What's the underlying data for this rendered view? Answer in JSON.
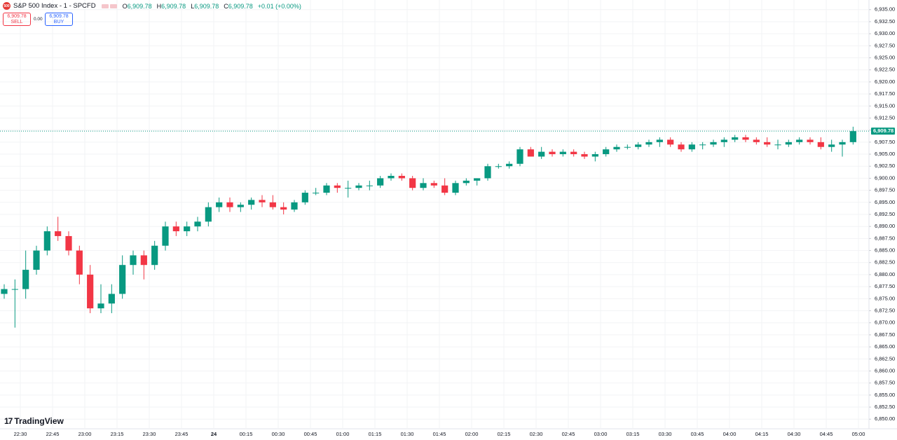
{
  "header": {
    "icon": "500",
    "symbol": "S&P 500 Index - 1 - SPCFD",
    "ohlc": [
      {
        "key": "O",
        "value": "6,909.78"
      },
      {
        "key": "H",
        "value": "6,909.78"
      },
      {
        "key": "L",
        "value": "6,909.78"
      },
      {
        "key": "C",
        "value": "6,909.78"
      }
    ],
    "change": "+0.01 (+0.00%)",
    "sell": {
      "price": "6,909.78",
      "label": "SELL"
    },
    "spread": "0.00",
    "buy": {
      "price": "6,909.78",
      "label": "BUY"
    }
  },
  "logo": "TradingView",
  "chart_data": {
    "type": "candlestick",
    "up_color": "#089981",
    "down_color": "#f23645",
    "grid": true,
    "x": [
      "22:20",
      "22:25",
      "22:30",
      "22:35",
      "22:40",
      "22:45",
      "22:50",
      "22:55",
      "23:00",
      "23:05",
      "23:10",
      "23:15",
      "23:20",
      "23:25",
      "23:30",
      "23:35",
      "23:40",
      "23:45",
      "23:50",
      "23:55",
      "00:00",
      "00:05",
      "00:10",
      "00:15",
      "00:20",
      "00:25",
      "00:30",
      "00:35",
      "00:40",
      "00:45",
      "00:50",
      "00:55",
      "01:00",
      "01:05",
      "01:10",
      "01:15",
      "01:20",
      "01:25",
      "01:30",
      "01:35",
      "01:40",
      "01:45",
      "01:50",
      "01:55",
      "02:00",
      "02:05",
      "02:10",
      "02:15",
      "02:20",
      "02:25",
      "02:30",
      "02:35",
      "02:40",
      "02:45",
      "02:50",
      "02:55",
      "03:00",
      "03:05",
      "03:10",
      "03:15",
      "03:20",
      "03:25",
      "03:30",
      "03:35",
      "03:40",
      "03:45",
      "03:50",
      "03:55",
      "04:00",
      "04:05",
      "04:10",
      "04:15",
      "04:20",
      "04:25",
      "04:30",
      "04:35",
      "04:40",
      "04:45",
      "04:50",
      "04:55"
    ],
    "ohlc": [
      [
        6876,
        6878,
        6875,
        6877
      ],
      [
        6877,
        6879,
        6869,
        6877
      ],
      [
        6877,
        6885,
        6875,
        6881
      ],
      [
        6881,
        6886,
        6880,
        6885
      ],
      [
        6885,
        6890,
        6884,
        6889
      ],
      [
        6889,
        6892,
        6887,
        6888
      ],
      [
        6888,
        6889,
        6884,
        6885
      ],
      [
        6885,
        6886,
        6878,
        6880
      ],
      [
        6880,
        6882,
        6872,
        6873
      ],
      [
        6873,
        6878,
        6872,
        6874
      ],
      [
        6874,
        6878,
        6872,
        6876
      ],
      [
        6876,
        6884,
        6875,
        6882
      ],
      [
        6882,
        6885,
        6880,
        6884
      ],
      [
        6884,
        6885,
        6879,
        6882
      ],
      [
        6882,
        6887,
        6881,
        6886
      ],
      [
        6886,
        6891,
        6885,
        6890
      ],
      [
        6890,
        6891,
        6888,
        6889
      ],
      [
        6889,
        6891,
        6888,
        6890
      ],
      [
        6890,
        6892,
        6889,
        6891
      ],
      [
        6891,
        6895,
        6890,
        6894
      ],
      [
        6894,
        6896,
        6893,
        6895
      ],
      [
        6895,
        6896,
        6893,
        6894
      ],
      [
        6894,
        6895,
        6893,
        6894.5
      ],
      [
        6894.5,
        6896,
        6893.5,
        6895.5
      ],
      [
        6895.5,
        6896.5,
        6894,
        6895
      ],
      [
        6895,
        6896.5,
        6893.5,
        6894
      ],
      [
        6894,
        6895,
        6892.5,
        6893.5
      ],
      [
        6893.5,
        6895.5,
        6893,
        6895
      ],
      [
        6895,
        6897.5,
        6894.5,
        6897
      ],
      [
        6897,
        6898,
        6896.5,
        6897
      ],
      [
        6897,
        6899,
        6896.5,
        6898.5
      ],
      [
        6898.5,
        6899,
        6897,
        6898
      ],
      [
        6898,
        6899.5,
        6896,
        6898
      ],
      [
        6898,
        6899,
        6897.5,
        6898.5
      ],
      [
        6898.5,
        6899.5,
        6897.5,
        6898.5
      ],
      [
        6898.5,
        6900.5,
        6898,
        6900
      ],
      [
        6900,
        6901,
        6899.5,
        6900.5
      ],
      [
        6900.5,
        6901,
        6899.5,
        6900
      ],
      [
        6900,
        6900.5,
        6897.5,
        6898
      ],
      [
        6898,
        6900,
        6897.5,
        6899
      ],
      [
        6899,
        6899.5,
        6898,
        6898.5
      ],
      [
        6898.5,
        6900,
        6896.5,
        6897
      ],
      [
        6897,
        6899.5,
        6896.5,
        6899
      ],
      [
        6899,
        6900,
        6898.5,
        6899.5
      ],
      [
        6899.5,
        6900,
        6898.5,
        6900
      ],
      [
        6900,
        6903,
        6899.5,
        6902.5
      ],
      [
        6902.5,
        6903,
        6902,
        6902.5
      ],
      [
        6902.5,
        6903.5,
        6902,
        6903
      ],
      [
        6903,
        6906.5,
        6902.5,
        6906
      ],
      [
        6906,
        6906.5,
        6904.5,
        6904.5
      ],
      [
        6904.5,
        6906.5,
        6904,
        6905.5
      ],
      [
        6905.5,
        6906,
        6904.5,
        6905
      ],
      [
        6905,
        6906,
        6904.5,
        6905.5
      ],
      [
        6905.5,
        6906,
        6904.5,
        6905
      ],
      [
        6905,
        6905.5,
        6904,
        6904.5
      ],
      [
        6904.5,
        6905.5,
        6903.5,
        6905
      ],
      [
        6905,
        6906.5,
        6904.5,
        6906
      ],
      [
        6906,
        6907,
        6905.5,
        6906.5
      ],
      [
        6906.5,
        6907,
        6906,
        6906.5
      ],
      [
        6906.5,
        6907.5,
        6906,
        6907
      ],
      [
        6907,
        6908,
        6906.5,
        6907.5
      ],
      [
        6907.5,
        6908.5,
        6906.5,
        6908
      ],
      [
        6908,
        6908.5,
        6906.5,
        6907
      ],
      [
        6907,
        6907.5,
        6905.5,
        6906
      ],
      [
        6906,
        6907.5,
        6905.5,
        6907
      ],
      [
        6907,
        6907.5,
        6906,
        6907
      ],
      [
        6907,
        6908,
        6906.5,
        6907.5
      ],
      [
        6907.5,
        6908.5,
        6906.5,
        6908
      ],
      [
        6908,
        6909,
        6907.5,
        6908.5
      ],
      [
        6908.5,
        6909,
        6907.5,
        6908
      ],
      [
        6908,
        6908.5,
        6907,
        6907.5
      ],
      [
        6907.5,
        6908.5,
        6906.5,
        6907
      ],
      [
        6907,
        6908,
        6906,
        6907
      ],
      [
        6907,
        6908,
        6906.5,
        6907.5
      ],
      [
        6907.5,
        6908.5,
        6907,
        6908
      ],
      [
        6908,
        6908.5,
        6907,
        6907.5
      ],
      [
        6907.5,
        6908.5,
        6906,
        6906.5
      ],
      [
        6906.5,
        6908,
        6905.5,
        6907
      ],
      [
        6907,
        6908,
        6904.5,
        6907.5
      ],
      [
        6907.5,
        6910.7,
        6907,
        6909.78
      ]
    ],
    "last_price": {
      "value": 6909.78,
      "label": "6,909.78"
    },
    "ylim": [
      6848,
      6937
    ],
    "yticks": [
      {
        "value": 6850,
        "label": "6,850.00"
      },
      {
        "value": 6852.5,
        "label": "6,852.50"
      },
      {
        "value": 6855,
        "label": "6,855.00"
      },
      {
        "value": 6857.5,
        "label": "6,857.50"
      },
      {
        "value": 6860,
        "label": "6,860.00"
      },
      {
        "value": 6862.5,
        "label": "6,862.50"
      },
      {
        "value": 6865,
        "label": "6,865.00"
      },
      {
        "value": 6867.5,
        "label": "6,867.50"
      },
      {
        "value": 6870,
        "label": "6,870.00"
      },
      {
        "value": 6872.5,
        "label": "6,872.50"
      },
      {
        "value": 6875,
        "label": "6,875.00"
      },
      {
        "value": 6877.5,
        "label": "6,877.50"
      },
      {
        "value": 6880,
        "label": "6,880.00"
      },
      {
        "value": 6882.5,
        "label": "6,882.50"
      },
      {
        "value": 6885,
        "label": "6,885.00"
      },
      {
        "value": 6887.5,
        "label": "6,887.50"
      },
      {
        "value": 6890,
        "label": "6,890.00"
      },
      {
        "value": 6892.5,
        "label": "6,892.50"
      },
      {
        "value": 6895,
        "label": "6,895.00"
      },
      {
        "value": 6897.5,
        "label": "6,897.50"
      },
      {
        "value": 6900,
        "label": "6,900.00"
      },
      {
        "value": 6902.5,
        "label": "6,902.50"
      },
      {
        "value": 6905,
        "label": "6,905.00"
      },
      {
        "value": 6907.5,
        "label": "6,907.50"
      },
      {
        "value": 6910,
        "label": "6,910.00"
      },
      {
        "value": 6912.5,
        "label": "6,912.50"
      },
      {
        "value": 6915,
        "label": "6,915.00"
      },
      {
        "value": 6917.5,
        "label": "6,917.50"
      },
      {
        "value": 6920,
        "label": "6,920.00"
      },
      {
        "value": 6922.5,
        "label": "6,922.50"
      },
      {
        "value": 6925,
        "label": "6,925.00"
      },
      {
        "value": 6927.5,
        "label": "6,927.50"
      },
      {
        "value": 6930,
        "label": "6,930.00"
      },
      {
        "value": 6932.5,
        "label": "6,932.50"
      },
      {
        "value": 6935,
        "label": "6,935.00"
      }
    ],
    "xticks": [
      "22:30",
      "22:45",
      "23:00",
      "23:15",
      "23:30",
      "23:45",
      {
        "value": "00:00",
        "label": "24"
      },
      "00:15",
      "00:30",
      "00:45",
      "01:00",
      "01:15",
      "01:30",
      "01:45",
      "02:00",
      "02:15",
      "02:30",
      "02:45",
      "03:00",
      "03:15",
      "03:30",
      "03:45",
      "04:00",
      "04:15",
      "04:30",
      "04:45",
      "05:00"
    ]
  }
}
